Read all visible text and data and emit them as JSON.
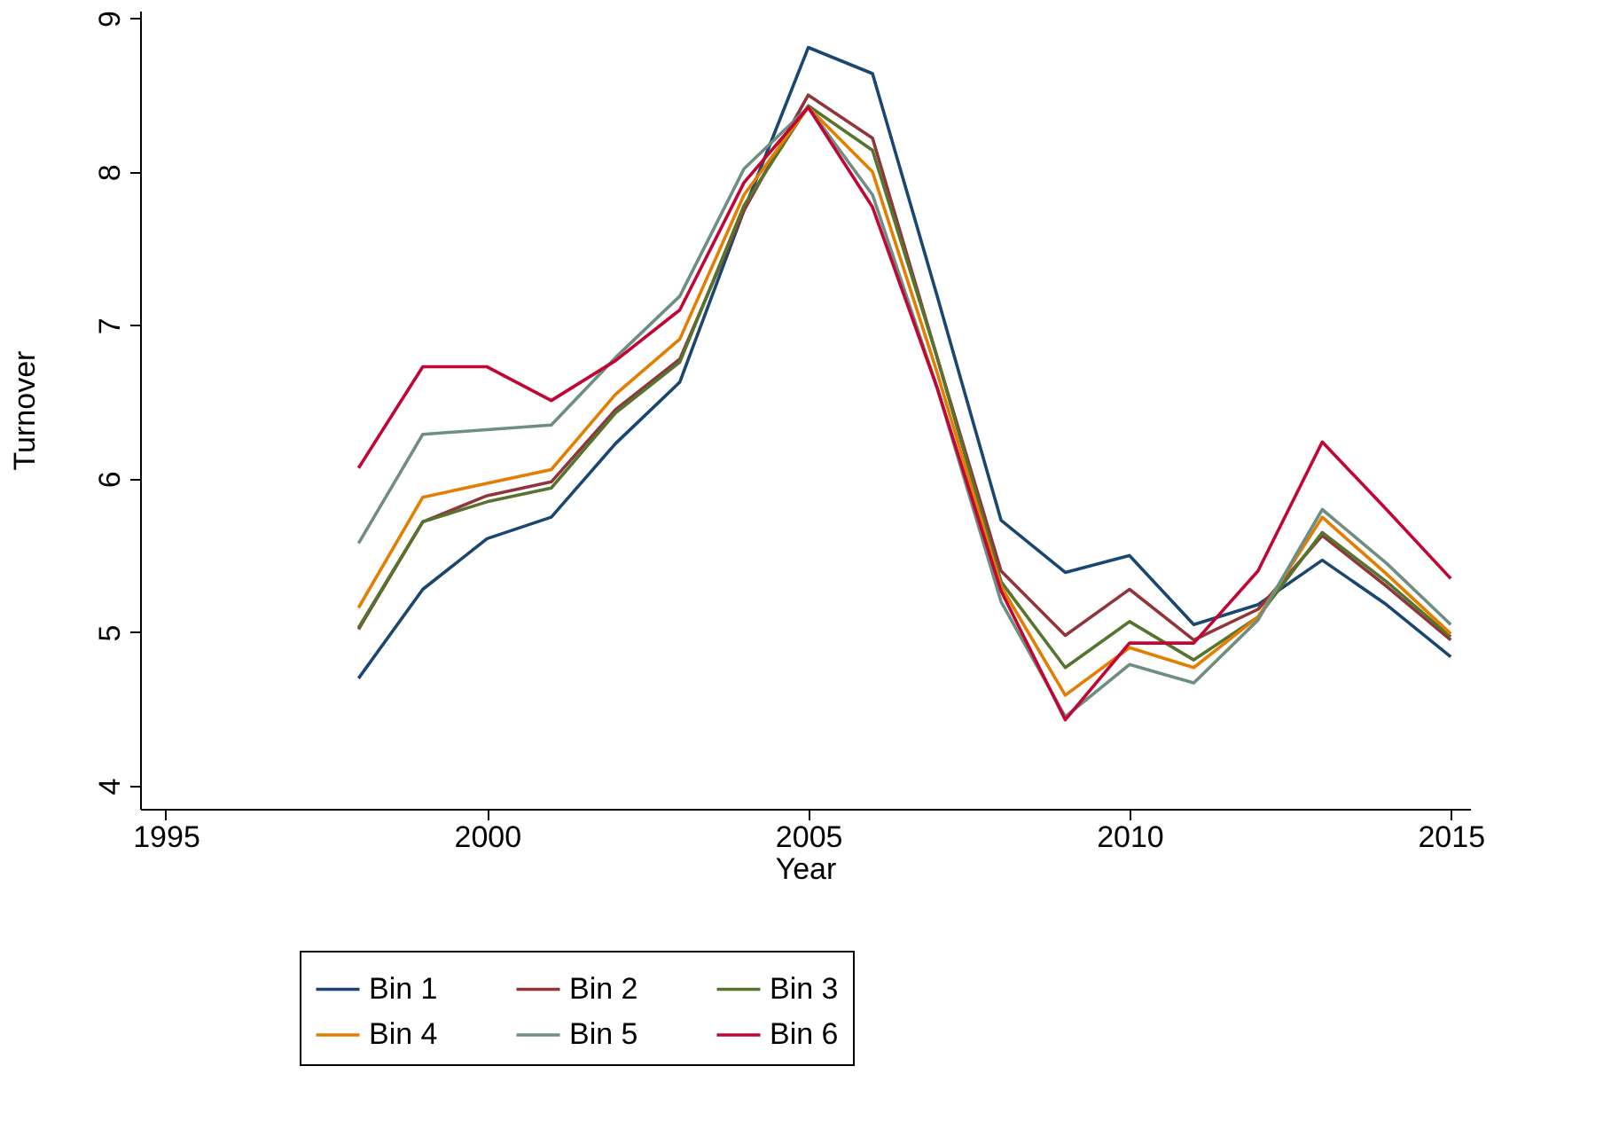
{
  "chart_data": {
    "type": "line",
    "xlabel": "Year",
    "ylabel": "Turnover",
    "x": [
      1998,
      1999,
      2000,
      2001,
      2002,
      2003,
      2004,
      2005,
      2006,
      2007,
      2008,
      2009,
      2010,
      2011,
      2012,
      2013,
      2014,
      2015
    ],
    "xlim": [
      1994.6,
      2015.3
    ],
    "xticks": [
      1995,
      2000,
      2005,
      2010,
      2015
    ],
    "ylim": [
      3.85,
      9.05
    ],
    "yticks": [
      4,
      5,
      6,
      7,
      8,
      9
    ],
    "grid": false,
    "legend": "bottom",
    "marker": "none",
    "line_style": "solid",
    "series": [
      {
        "name": "Bin 1",
        "color": "#1a476f",
        "values": [
          4.7,
          5.28,
          5.61,
          5.75,
          6.23,
          6.63,
          7.75,
          8.81,
          8.64,
          7.2,
          5.73,
          5.39,
          5.5,
          5.05,
          5.18,
          5.47,
          5.18,
          4.84
        ]
      },
      {
        "name": "Bin 2",
        "color": "#90353b",
        "values": [
          5.02,
          5.72,
          5.89,
          5.98,
          6.45,
          6.78,
          7.75,
          8.5,
          8.22,
          6.8,
          5.4,
          4.98,
          5.28,
          4.95,
          5.15,
          5.63,
          5.3,
          4.95
        ]
      },
      {
        "name": "Bin 3",
        "color": "#55752f",
        "values": [
          5.03,
          5.72,
          5.85,
          5.94,
          6.43,
          6.76,
          7.78,
          8.43,
          8.14,
          6.8,
          5.33,
          4.77,
          5.07,
          4.82,
          5.1,
          5.65,
          5.33,
          4.97
        ]
      },
      {
        "name": "Bin 4",
        "color": "#e37e00",
        "values": [
          5.16,
          5.88,
          5.97,
          6.06,
          6.55,
          6.91,
          7.85,
          8.42,
          8.0,
          6.7,
          5.3,
          4.59,
          4.9,
          4.77,
          5.1,
          5.75,
          5.38,
          4.99
        ]
      },
      {
        "name": "Bin 5",
        "color": "#6e8e84",
        "values": [
          5.58,
          6.29,
          6.32,
          6.35,
          6.79,
          7.19,
          8.02,
          8.42,
          7.85,
          6.6,
          5.2,
          4.45,
          4.79,
          4.67,
          5.08,
          5.8,
          5.45,
          5.05
        ]
      },
      {
        "name": "Bin 6",
        "color": "#c10534",
        "values": [
          6.07,
          6.73,
          6.73,
          6.51,
          6.77,
          7.1,
          7.93,
          8.42,
          7.77,
          6.6,
          5.27,
          4.43,
          4.93,
          4.93,
          5.4,
          6.24,
          5.8,
          5.35
        ]
      }
    ]
  }
}
